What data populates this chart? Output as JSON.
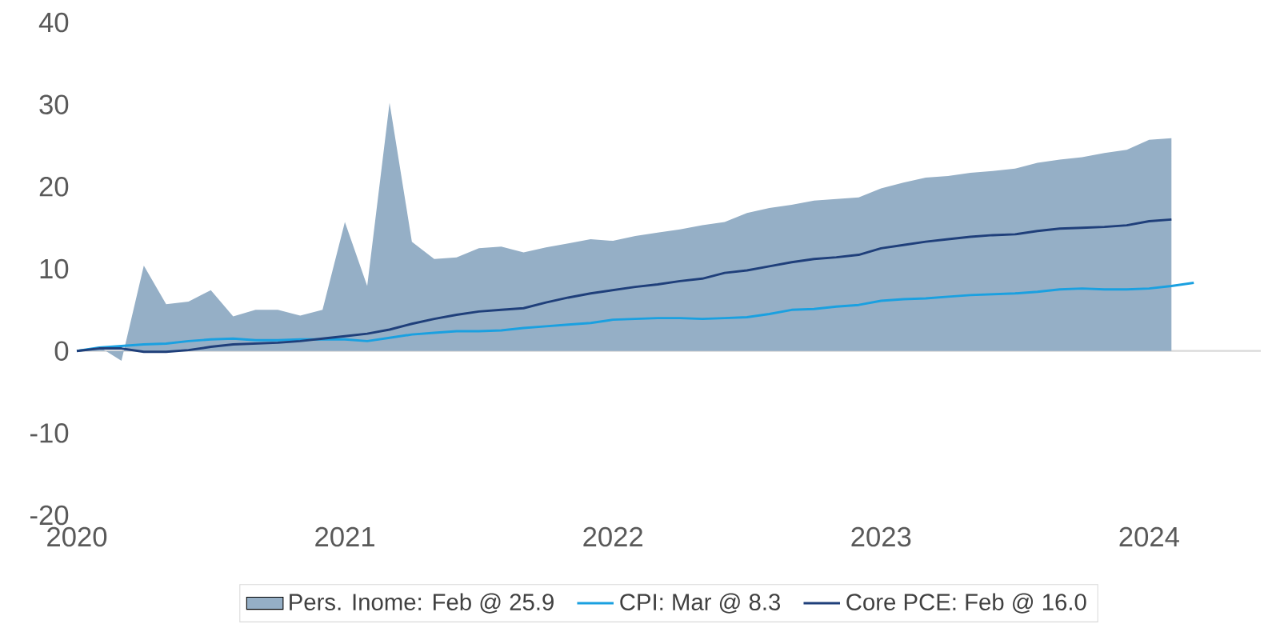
{
  "chart_data": {
    "type": "line",
    "xlim": [
      "2020-01",
      "2024-06"
    ],
    "xticks": [
      "2020",
      "2021",
      "2022",
      "2023",
      "2024"
    ],
    "ylim": [
      -20,
      40
    ],
    "yticks": [
      -20,
      -10,
      0,
      10,
      20,
      30,
      40
    ],
    "legend": "bottom",
    "ref_lines": [
      {
        "axis": "y",
        "value": 0,
        "color": "#d9d9d9"
      }
    ],
    "marker": "none",
    "line_style": "solid",
    "x": [
      "2020-01",
      "2020-02",
      "2020-03",
      "2020-04",
      "2020-05",
      "2020-06",
      "2020-07",
      "2020-08",
      "2020-09",
      "2020-10",
      "2020-11",
      "2020-12",
      "2021-01",
      "2021-02",
      "2021-03",
      "2021-04",
      "2021-05",
      "2021-06",
      "2021-07",
      "2021-08",
      "2021-09",
      "2021-10",
      "2021-11",
      "2021-12",
      "2022-01",
      "2022-02",
      "2022-03",
      "2022-04",
      "2022-05",
      "2022-06",
      "2022-07",
      "2022-08",
      "2022-09",
      "2022-10",
      "2022-11",
      "2022-12",
      "2023-01",
      "2023-02",
      "2023-03",
      "2023-04",
      "2023-05",
      "2023-06",
      "2023-07",
      "2023-08",
      "2023-09",
      "2023-10",
      "2023-11",
      "2023-12",
      "2024-01",
      "2024-02",
      "2024-03"
    ],
    "series": [
      {
        "name": "Pers. Inome: Feb @ 25.9",
        "type": "area",
        "color": "#95afc6",
        "values": [
          0,
          0.5,
          -1.2,
          10.4,
          5.7,
          6.0,
          7.4,
          4.2,
          5.0,
          5.0,
          4.3,
          5.0,
          15.7,
          7.9,
          30.2,
          13.3,
          11.2,
          11.4,
          12.5,
          12.7,
          12.0,
          12.6,
          13.1,
          13.6,
          13.4,
          14.0,
          14.4,
          14.8,
          15.3,
          15.7,
          16.8,
          17.4,
          17.8,
          18.3,
          18.5,
          18.7,
          19.8,
          20.5,
          21.1,
          21.3,
          21.7,
          21.9,
          22.2,
          22.9,
          23.3,
          23.6,
          24.1,
          24.5,
          25.7,
          25.9,
          null
        ]
      },
      {
        "name": "CPI: Mar @ 8.3",
        "color": "#1aa0e0",
        "values": [
          0,
          0.4,
          0.6,
          0.8,
          0.9,
          1.2,
          1.4,
          1.5,
          1.3,
          1.3,
          1.4,
          1.4,
          1.4,
          1.2,
          1.6,
          2.0,
          2.2,
          2.4,
          2.4,
          2.5,
          2.8,
          3.0,
          3.2,
          3.4,
          3.8,
          3.9,
          4.0,
          4.0,
          3.9,
          4.0,
          4.1,
          4.5,
          5.0,
          5.1,
          5.4,
          5.6,
          6.1,
          6.3,
          6.4,
          6.6,
          6.8,
          6.9,
          7.0,
          7.2,
          7.5,
          7.6,
          7.5,
          7.5,
          7.6,
          7.9,
          8.3
        ]
      },
      {
        "name": "Core PCE: Feb @ 16.0",
        "color": "#1f3f7a",
        "values": [
          0,
          0.3,
          0.3,
          -0.1,
          -0.1,
          0.1,
          0.5,
          0.8,
          0.9,
          1.0,
          1.2,
          1.5,
          1.8,
          2.1,
          2.6,
          3.3,
          3.9,
          4.4,
          4.8,
          5.0,
          5.2,
          5.9,
          6.5,
          7.0,
          7.4,
          7.8,
          8.1,
          8.5,
          8.8,
          9.5,
          9.8,
          10.3,
          10.8,
          11.2,
          11.4,
          11.7,
          12.5,
          12.9,
          13.3,
          13.6,
          13.9,
          14.1,
          14.2,
          14.6,
          14.9,
          15.0,
          15.1,
          15.3,
          15.8,
          16.0,
          null
        ]
      }
    ]
  }
}
